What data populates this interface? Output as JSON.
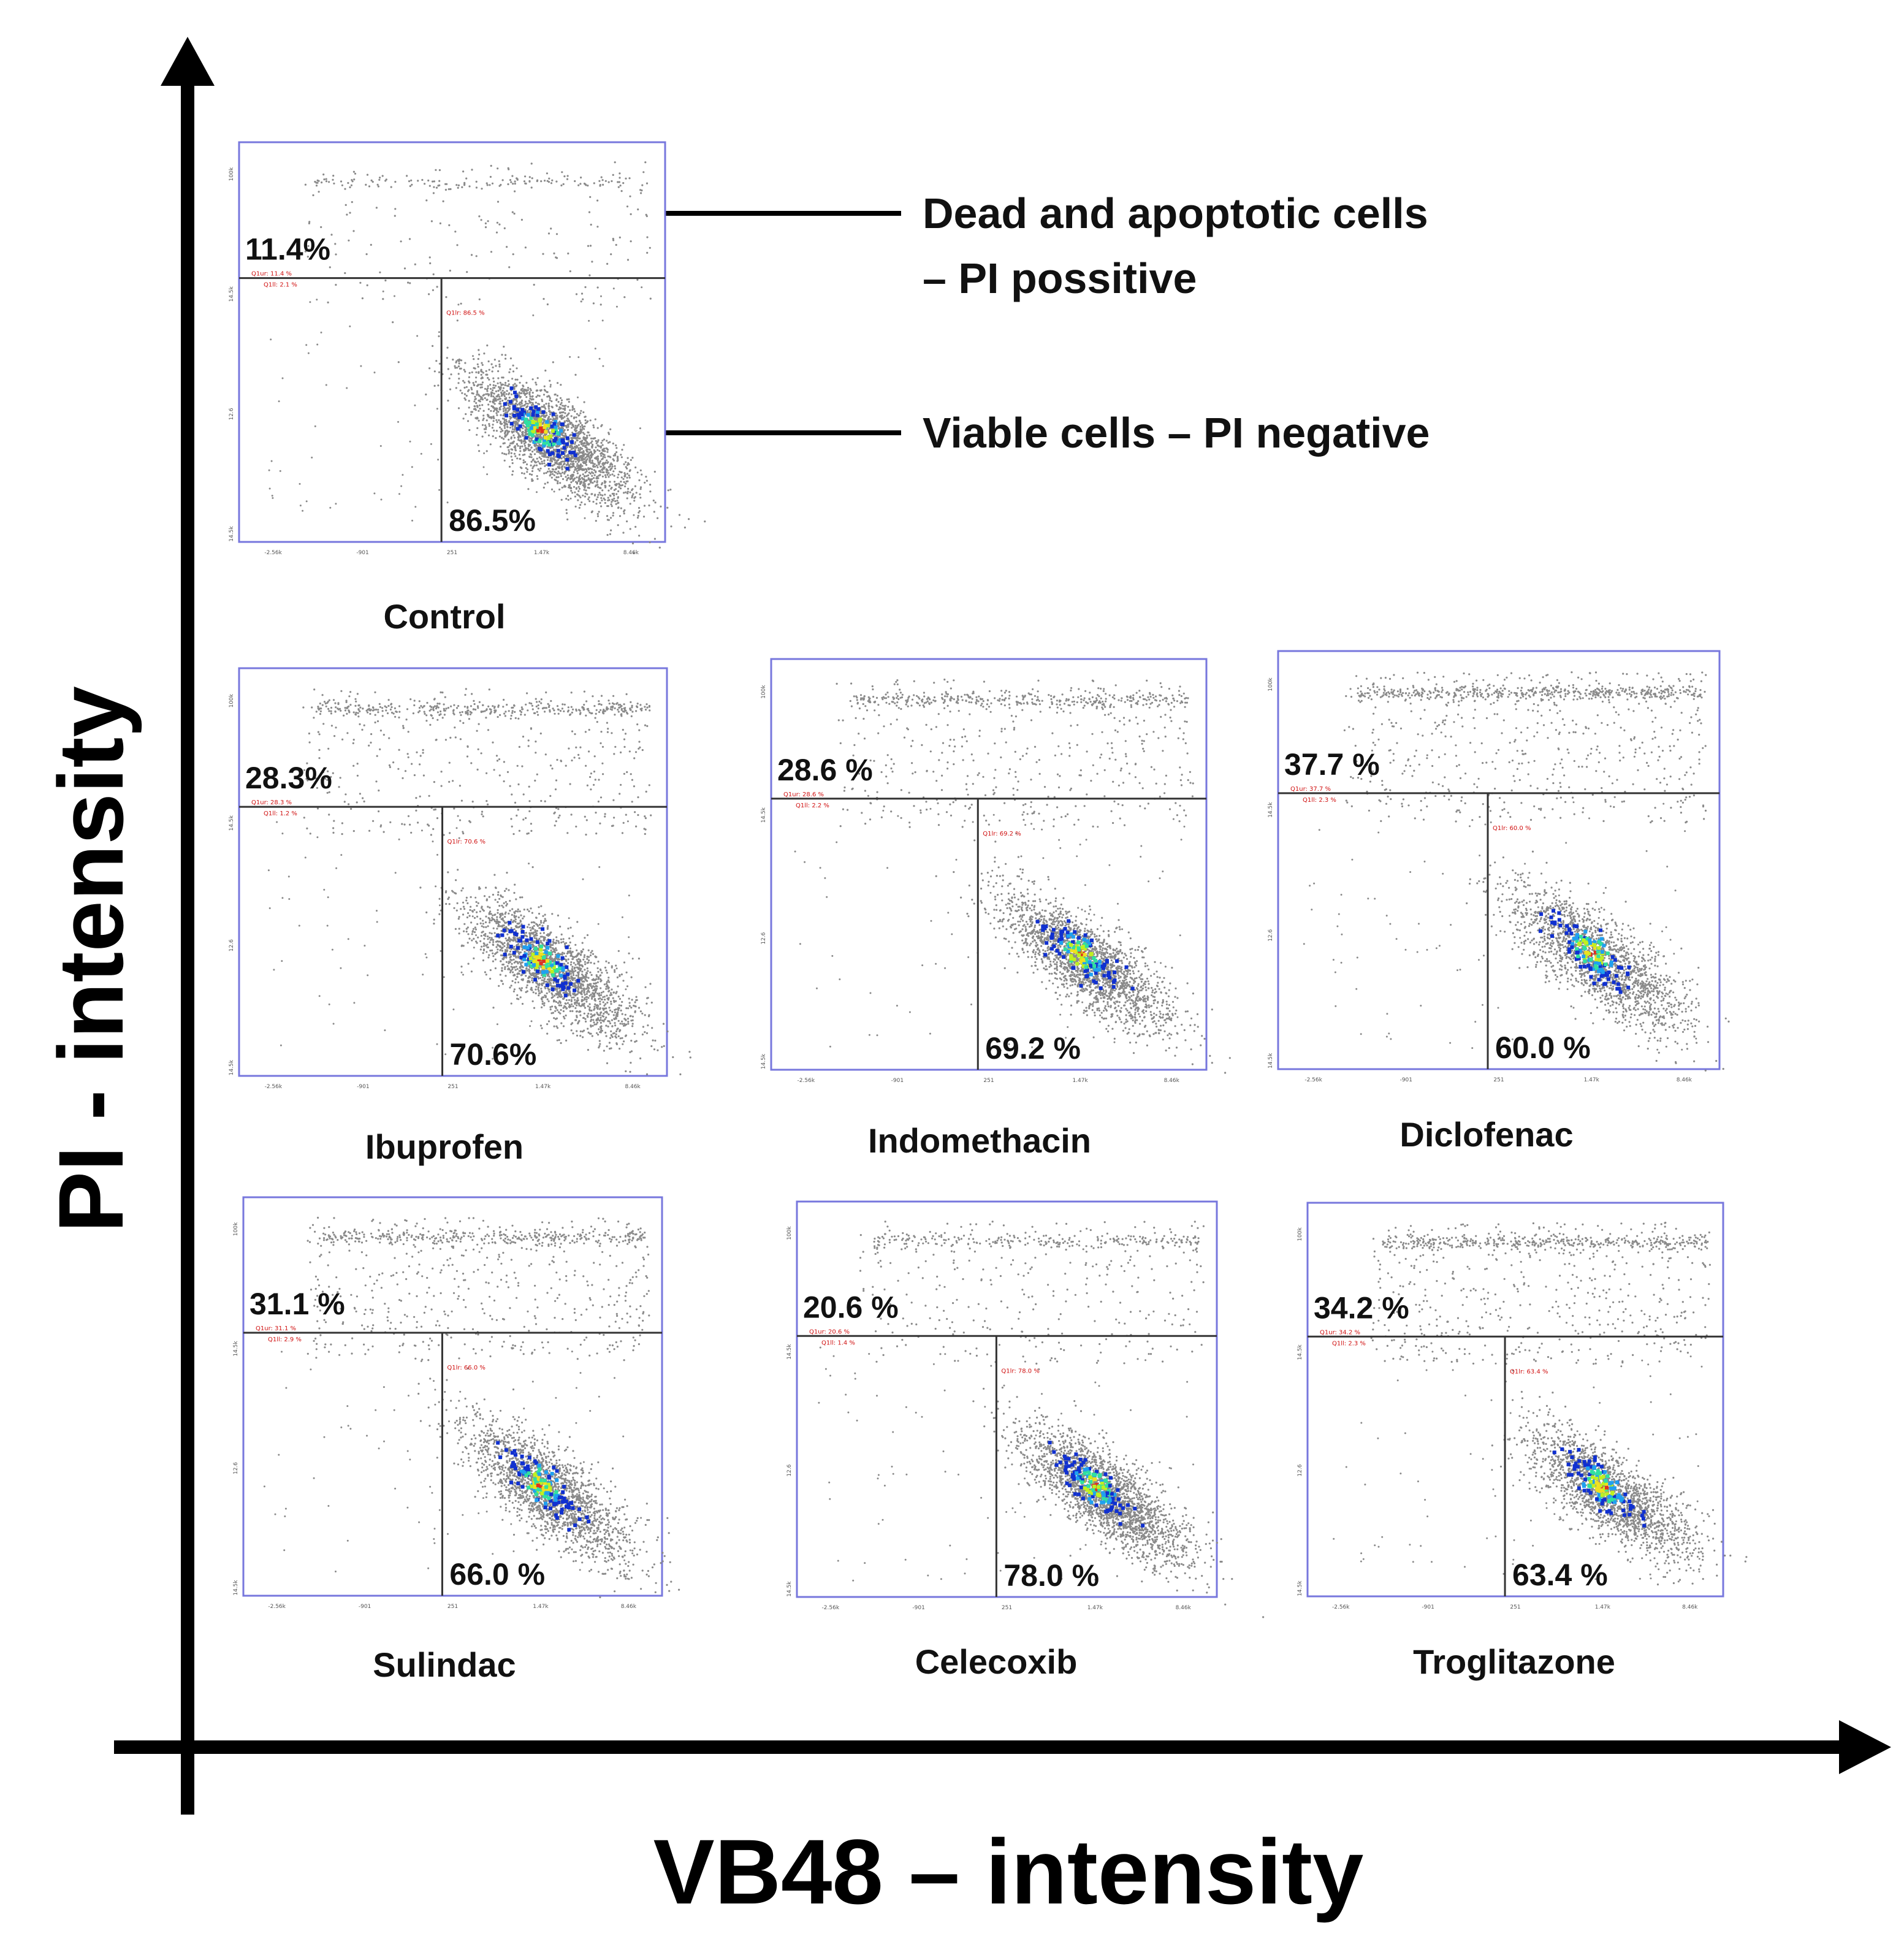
{
  "chart_data": {
    "type": "scatter",
    "title": "",
    "xlabel": "VB48 – intensity",
    "ylabel": "PI - intensity",
    "annotations": [
      {
        "name": "dead-cells",
        "lines": [
          "Dead and apoptotic cells",
          "– PI possitive"
        ],
        "target": "upper-quadrant"
      },
      {
        "name": "viable-cells",
        "lines": [
          "Viable cells – PI negative"
        ],
        "target": "lower-right-quadrant"
      }
    ],
    "x_tick_labels": [
      "-2.56k",
      "-901",
      "251",
      "1.47k",
      "8.46k"
    ],
    "y_tick_labels": [
      "100k",
      "14.5k",
      "12.6",
      "14.5k"
    ],
    "panels": [
      {
        "label": "Control",
        "pi_positive": "11.4%",
        "pi_negative": "86.5%",
        "pi_positive_value": 11.4,
        "pi_negative_value": 86.5,
        "gate_labels": [
          "Q1ur: 11.4 %",
          "Q1ll: 2.1 %",
          "Q1lr: 86.5 %"
        ]
      },
      {
        "label": "Ibuprofen",
        "pi_positive": "28.3%",
        "pi_negative": "70.6%",
        "pi_positive_value": 28.3,
        "pi_negative_value": 70.6,
        "gate_labels": [
          "Q1ur: 28.3 %",
          "Q1ll: 1.2 %",
          "Q1lr: 70.6 %"
        ]
      },
      {
        "label": "Indomethacin",
        "pi_positive": "28.6 %",
        "pi_negative": "69.2 %",
        "pi_positive_value": 28.6,
        "pi_negative_value": 69.2,
        "gate_labels": [
          "Q1ur: 28.6 %",
          "Q1ll: 2.2 %",
          "Q1lr: 69.2 %"
        ]
      },
      {
        "label": "Diclofenac",
        "pi_positive": "37.7 %",
        "pi_negative": "60.0 %",
        "pi_positive_value": 37.7,
        "pi_negative_value": 60.0,
        "gate_labels": [
          "Q1ur: 37.7 %",
          "Q1ll: 2.3 %",
          "Q1lr: 60.0 %"
        ]
      },
      {
        "label": "Sulindac",
        "pi_positive": "31.1 %",
        "pi_negative": "66.0 %",
        "pi_positive_value": 31.1,
        "pi_negative_value": 66.0,
        "gate_labels": [
          "Q1ur: 31.1 %",
          "Q1ll: 2.9 %",
          "Q1lr: 66.0 %"
        ]
      },
      {
        "label": "Celecoxib",
        "pi_positive": "20.6 %",
        "pi_negative": "78.0 %",
        "pi_positive_value": 20.6,
        "pi_negative_value": 78.0,
        "gate_labels": [
          "Q1ur: 20.6 %",
          "Q1ll: 1.4 %",
          "Q1lr: 78.0 %"
        ]
      },
      {
        "label": "Troglitazone",
        "pi_positive": "34.2 %",
        "pi_negative": "63.4 %",
        "pi_positive_value": 34.2,
        "pi_negative_value": 63.4,
        "gate_labels": [
          "Q1ur: 34.2 %",
          "Q1ll: 2.3 %",
          "Q1lr: 63.4 %"
        ]
      }
    ]
  },
  "colors": {
    "axis": "#000000",
    "panel_border": "#7777dd",
    "gate_line": "#333333",
    "gate_text": "#d01010",
    "dot": "#8a8a8a",
    "density": [
      "#1030d0",
      "#20a0f0",
      "#30e0a0",
      "#c0f020",
      "#f0e020",
      "#e03020"
    ]
  }
}
